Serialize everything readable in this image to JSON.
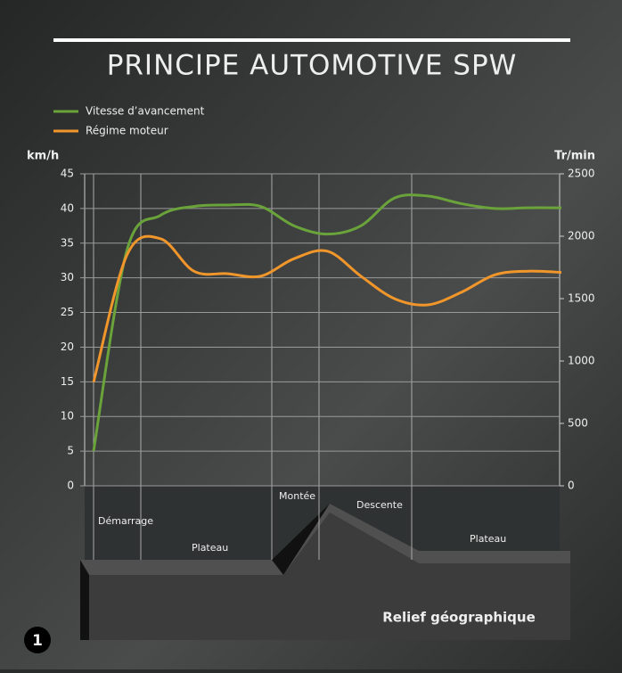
{
  "chart_data": {
    "type": "line",
    "title": "PRINCIPE AUTOMOTIVE SPW",
    "y_label": "km/h",
    "y2_label": "Tr/min",
    "categories": [
      null,
      null,
      null,
      null,
      null,
      null,
      null,
      null,
      null,
      null,
      null,
      null,
      null,
      null,
      null
    ],
    "series": [
      {
        "name": "Vitesse d’avancement",
        "color": "#6aa33a",
        "values": [
          5,
          34,
          39,
          40.3,
          40.5,
          40.3,
          37.5,
          36.3,
          37.5,
          41.5,
          41.8,
          40.7,
          40,
          40.1,
          40.1
        ]
      },
      {
        "name": "Régime moteur",
        "color": "#f0962a",
        "axis": "y2",
        "values": [
          830,
          1850,
          1980,
          1720,
          1700,
          1680,
          1820,
          1880,
          1680,
          1500,
          1450,
          1550,
          1690,
          1720,
          1710
        ]
      }
    ],
    "ylim": [
      0,
      45
    ],
    "yticks": [
      0,
      5,
      10,
      15,
      20,
      25,
      30,
      35,
      40,
      45
    ],
    "y2lim": [
      0,
      2500
    ],
    "y2ticks": [
      0,
      500,
      1000,
      1500,
      2000,
      2500
    ],
    "grid": true,
    "regions": [
      "Démarrage",
      "Plateau",
      "Montée",
      "Descente",
      "Plateau"
    ],
    "relief_label": "Relief géographique",
    "badge": "1"
  }
}
